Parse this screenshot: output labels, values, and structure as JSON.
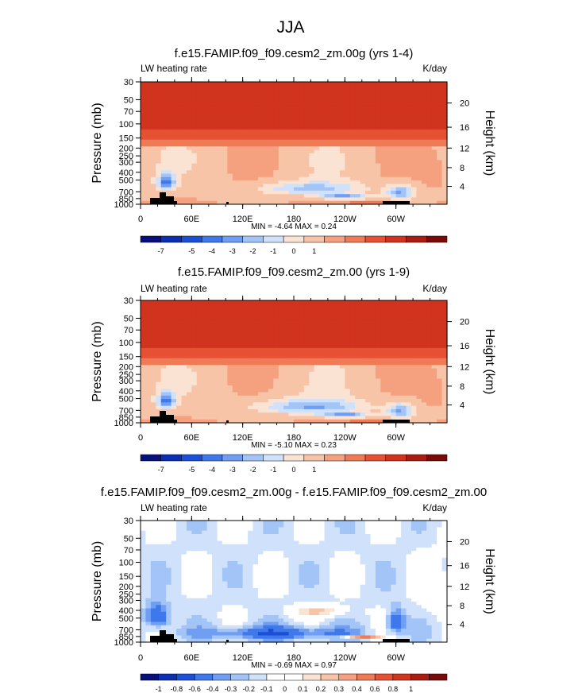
{
  "figure_title": "JJA",
  "colors": {
    "blues": [
      "#08107a",
      "#0a2fb0",
      "#1a4fd6",
      "#3f78ea",
      "#6f9ef2",
      "#a3c4f7",
      "#d0e2fb"
    ],
    "white": "#ffffff",
    "reds": [
      "#fbe3d4",
      "#f8c4a8",
      "#f5a07e",
      "#ef7a56",
      "#e65134",
      "#d0331e",
      "#a81d12",
      "#780a0a"
    ],
    "land": "#000000"
  },
  "chart_data": [
    {
      "type": "contour",
      "title": "f.e15.FAMIP.f09_f09.cesm2_zm.00g (yrs 1-4)",
      "left_label": "LW heating rate",
      "right_label": "K/day",
      "xlabel": "",
      "ylabel": "Pressure (mb)",
      "ylabel_right": "Height (km)",
      "x_ticks": [
        "0",
        "60E",
        "120E",
        "180",
        "120W",
        "60W"
      ],
      "y_ticks": [
        "30",
        "50",
        "70",
        "100",
        "150",
        "200",
        "250",
        "300",
        "400",
        "500",
        "700",
        "850",
        "1000"
      ],
      "height_ticks": [
        "4",
        "8",
        "12",
        "16",
        "20"
      ],
      "stats": "MIN =  -4.64  MAX =   0.24",
      "colorbar_labels": [
        "-7",
        "-5",
        "-4",
        "-3",
        "-2",
        "-1",
        "0",
        "1"
      ],
      "value_range": [
        -4.64,
        0.24
      ]
    },
    {
      "type": "contour",
      "title": "f.e15.FAMIP.f09_f09.cesm2_zm.00 (yrs 1-9)",
      "left_label": "LW heating rate",
      "right_label": "K/day",
      "xlabel": "",
      "ylabel": "Pressure (mb)",
      "ylabel_right": "Height (km)",
      "x_ticks": [
        "0",
        "60E",
        "120E",
        "180",
        "120W",
        "60W"
      ],
      "y_ticks": [
        "30",
        "50",
        "70",
        "100",
        "150",
        "200",
        "250",
        "300",
        "400",
        "500",
        "700",
        "850",
        "1000"
      ],
      "height_ticks": [
        "4",
        "8",
        "12",
        "16",
        "20"
      ],
      "stats": "MIN =  -5.10  MAX =   0.23",
      "colorbar_labels": [
        "-7",
        "-5",
        "-4",
        "-3",
        "-2",
        "-1",
        "0",
        "1"
      ],
      "value_range": [
        -5.1,
        0.23
      ]
    },
    {
      "type": "contour",
      "title": "f.e15.FAMIP.f09_f09.cesm2_zm.00g - f.e15.FAMIP.f09_f09.cesm2_zm.00",
      "left_label": "LW heating rate",
      "right_label": "K/day",
      "xlabel": "",
      "ylabel": "Pressure (mb)",
      "ylabel_right": "Height (km)",
      "x_ticks": [
        "0",
        "60E",
        "120E",
        "180",
        "120W",
        "60W"
      ],
      "y_ticks": [
        "30",
        "50",
        "70",
        "100",
        "150",
        "200",
        "250",
        "300",
        "400",
        "500",
        "700",
        "850",
        "1000"
      ],
      "height_ticks": [
        "4",
        "8",
        "12",
        "16",
        "20"
      ],
      "stats": "MIN =  -0.69  MAX =   0.97",
      "colorbar_labels": [
        "-1",
        "-0.8",
        "-0.6",
        "-0.4",
        "-0.3",
        "-0.2",
        "-0.1",
        "0",
        "0.1",
        "0.2",
        "0.3",
        "0.4",
        "0.6",
        "0.8",
        "1"
      ],
      "value_range": [
        -0.69,
        0.97
      ]
    }
  ]
}
